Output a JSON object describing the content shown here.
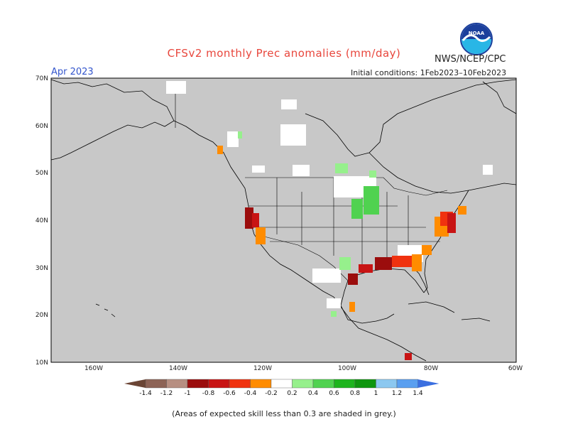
{
  "header": {
    "title": "CFSv2 monthly Prec anomalies (mm/day)",
    "org": "NWS/NCEP/CPC",
    "month": "Apr 2023",
    "initial_conditions": "Initial conditions: 1Feb2023–10Feb2023",
    "logo_text": "NOAA"
  },
  "axes": {
    "lat_labels": [
      "70N",
      "60N",
      "50N",
      "40N",
      "30N",
      "20N",
      "10N"
    ],
    "lon_labels": [
      "160W",
      "140W",
      "120W",
      "100W",
      "80W",
      "60W"
    ]
  },
  "colorbar": {
    "labels": [
      "-1.4",
      "-1.2",
      "-1",
      "-0.8",
      "-0.6",
      "-0.4",
      "-0.2",
      "0.2",
      "0.4",
      "0.6",
      "0.8",
      "1",
      "1.2",
      "1.4"
    ],
    "colors": [
      "#6b4535",
      "#8d6356",
      "#b78f82",
      "#9b0d0d",
      "#c81414",
      "#f0320f",
      "#ff8c00",
      "#ffffff",
      "#96f08c",
      "#50d250",
      "#1eb41e",
      "#0f960f",
      "#8cc8f0",
      "#5a9ff0",
      "#3b6fe0"
    ],
    "grey_color": "#c8c8c8"
  },
  "footnote": "(Areas of expected skill less than 0.3 are shaded in grey.)"
}
